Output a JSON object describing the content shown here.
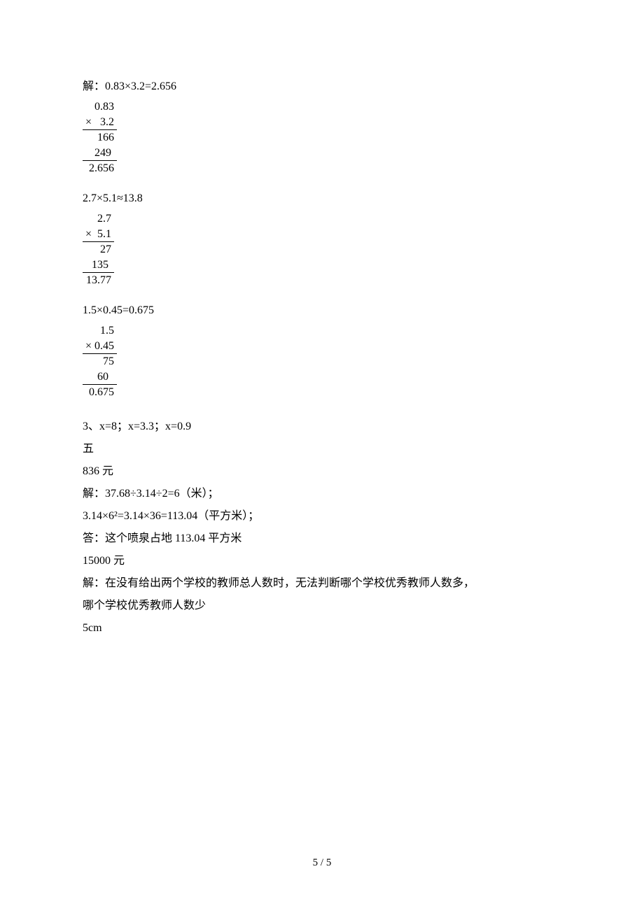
{
  "header1": "解：0.83×3.2=2.656",
  "calc1": {
    "r1": "0.83",
    "r2": "×   3.2",
    "r3": "166",
    "r4": "249 ",
    "r5": "2.656"
  },
  "header2": "2.7×5.1≈13.8",
  "calc2": {
    "r1": "2.7",
    "r2": "×  5.1",
    "r3": "27",
    "r4": "135 ",
    "r5": "13.77"
  },
  "header3": "1.5×0.45=0.675",
  "calc3": {
    "r1": "1.5",
    "r2": "× 0.45",
    "r3": "75",
    "r4": "60  ",
    "r5": "0.675"
  },
  "lines": {
    "l1": "3、x=8；x=3.3；x=0.9",
    "l2": "五",
    "l3": "836 元",
    "l4": "解：37.68÷3.14÷2=6（米）；",
    "l5": "3.14×6²=3.14×36=113.04（平方米）；",
    "l6": "答：这个喷泉占地 113.04 平方米",
    "l7": "15000 元",
    "l8": "解：在没有给出两个学校的教师总人数时，无法判断哪个学校优秀教师人数多，",
    "l9": "哪个学校优秀教师人数少",
    "l10": "5cm"
  },
  "footer": "5 / 5",
  "colors": {
    "text": "#000000",
    "background": "#ffffff",
    "rule": "#000000"
  },
  "font": {
    "body_size_pt": 12,
    "family": "SimSun"
  }
}
